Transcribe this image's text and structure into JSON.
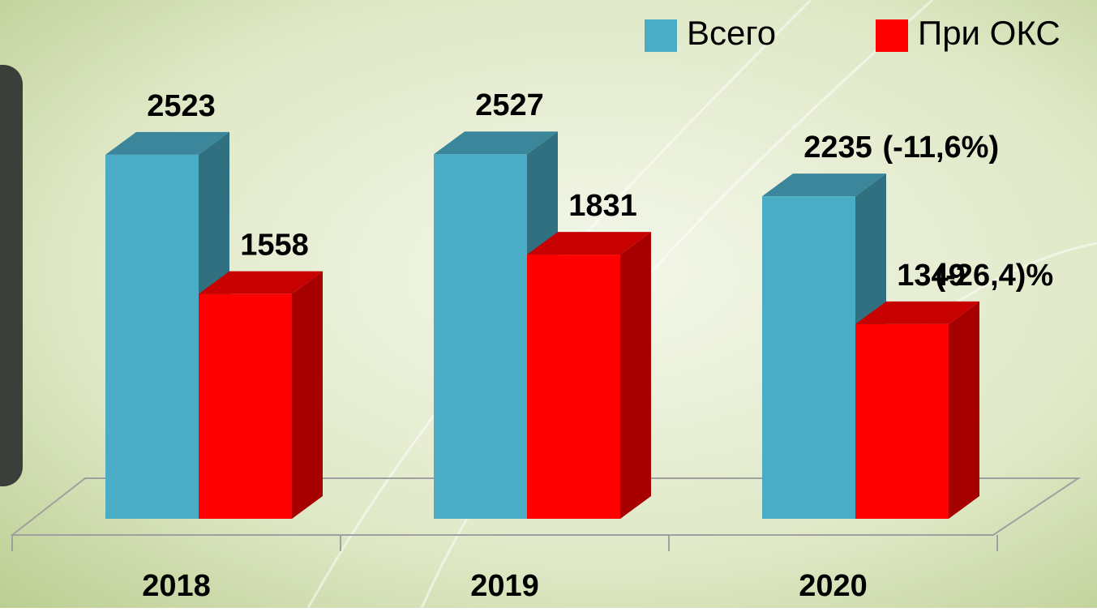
{
  "chart_data": {
    "type": "bar3d",
    "categories": [
      "2018",
      "2019",
      "2020"
    ],
    "series": [
      {
        "name": "Всего",
        "color": "#4bacc6",
        "values": [
          2523,
          2527,
          2235
        ]
      },
      {
        "name": "При ОКС",
        "color": "#ff0000",
        "values": [
          1558,
          1831,
          1349
        ]
      }
    ],
    "annotations": [
      {
        "series": 0,
        "index": 2,
        "text": "(-11,6%)"
      },
      {
        "series": 1,
        "index": 2,
        "text": "(-26,4)%"
      }
    ],
    "ylim": [
      0,
      3000
    ],
    "legend": "top-right"
  }
}
